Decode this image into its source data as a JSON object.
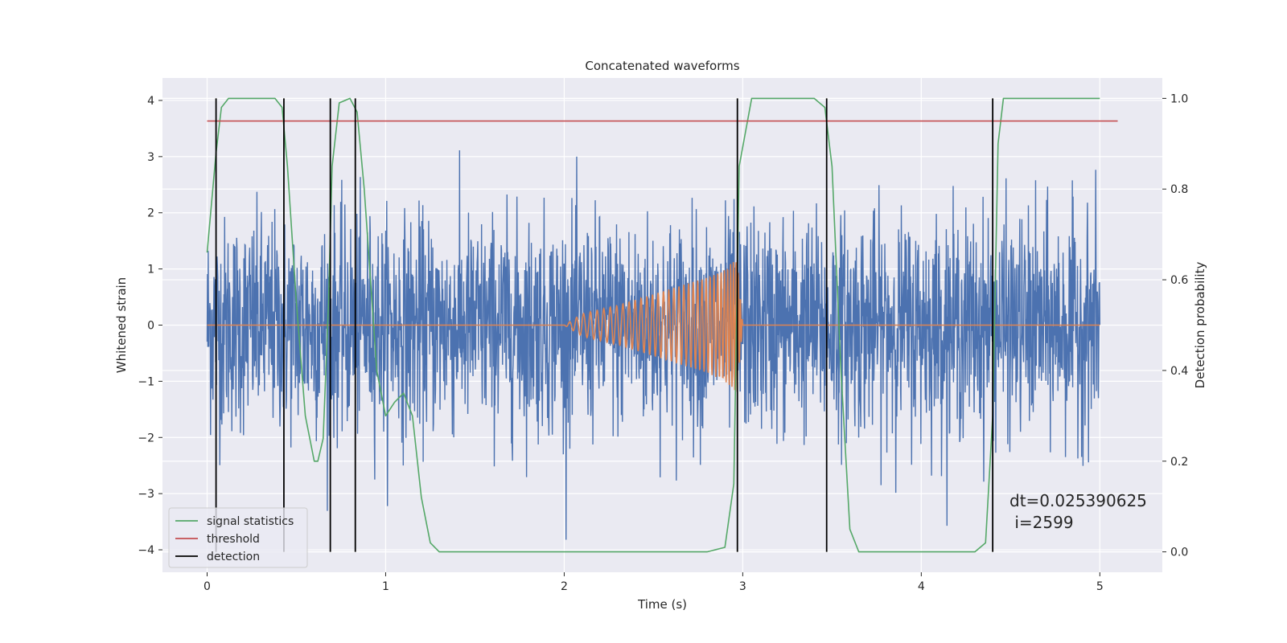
{
  "chart_data": {
    "type": "line",
    "title": "Concatenated waveforms",
    "xlabel": "Time (s)",
    "ylabel_left": "Whitened strain",
    "ylabel_right": "Detection probability",
    "xlim": [
      -0.25,
      5.35
    ],
    "ylim_left": [
      -4.4,
      4.4
    ],
    "ylim_right": [
      -0.045,
      1.045
    ],
    "x_ticks": [
      0,
      1,
      2,
      3,
      4,
      5
    ],
    "y_left_ticks": [
      -4,
      -3,
      -2,
      -1,
      0,
      1,
      2,
      3,
      4
    ],
    "y_right_ticks": [
      0.0,
      0.2,
      0.4,
      0.6,
      0.8,
      1.0
    ],
    "y_left_tick_labels": [
      "−4",
      "−3",
      "−2",
      "−1",
      "0",
      "1",
      "2",
      "3",
      "4"
    ],
    "y_right_tick_labels": [
      "0.0",
      "0.2",
      "0.4",
      "0.6",
      "0.8",
      "1.0"
    ],
    "grid": true,
    "background": "#eaeaf2",
    "legend_position": "lower-left",
    "series": [
      {
        "name": "",
        "axis": "left",
        "kind": "noise",
        "color": "#4c72b0",
        "x_range": [
          0,
          5
        ],
        "amplitude_std": 0.95,
        "amplitude_max": 3.9
      },
      {
        "name": "",
        "axis": "left",
        "kind": "chirp",
        "color": "#dd8452",
        "x": [
          0,
          2.0,
          2.1,
          2.2,
          2.3,
          2.4,
          2.5,
          2.6,
          2.7,
          2.8,
          2.9,
          2.97,
          3.0,
          5.0
        ],
        "envelope": [
          0,
          0.0,
          0.2,
          0.28,
          0.35,
          0.45,
          0.55,
          0.65,
          0.75,
          0.85,
          1.0,
          1.2,
          0.0,
          0.0
        ]
      },
      {
        "name": "signal statistics",
        "axis": "right",
        "color": "#55a868",
        "x": [
          0.0,
          0.05,
          0.08,
          0.12,
          0.2,
          0.38,
          0.42,
          0.45,
          0.5,
          0.55,
          0.6,
          0.62,
          0.65,
          0.68,
          0.7,
          0.74,
          0.8,
          0.84,
          0.88,
          0.95,
          1.0,
          1.05,
          1.1,
          1.15,
          1.2,
          1.25,
          1.3,
          1.5,
          2.0,
          2.5,
          2.8,
          2.9,
          2.95,
          2.98,
          3.05,
          3.4,
          3.46,
          3.5,
          3.55,
          3.6,
          3.65,
          4.0,
          4.3,
          4.36,
          4.4,
          4.43,
          4.46,
          4.6,
          5.0
        ],
        "y": [
          0.66,
          0.88,
          0.98,
          1.0,
          1.0,
          1.0,
          0.98,
          0.85,
          0.55,
          0.3,
          0.2,
          0.2,
          0.25,
          0.55,
          0.85,
          0.99,
          1.0,
          0.97,
          0.8,
          0.4,
          0.3,
          0.33,
          0.35,
          0.3,
          0.12,
          0.02,
          0.0,
          0.0,
          0.0,
          0.0,
          0.0,
          0.01,
          0.15,
          0.85,
          1.0,
          1.0,
          0.98,
          0.85,
          0.4,
          0.05,
          0.0,
          0.0,
          0.0,
          0.02,
          0.3,
          0.9,
          1.0,
          1.0,
          1.0
        ]
      },
      {
        "name": "threshold",
        "axis": "right",
        "color": "#c44e52",
        "x": [
          0,
          5.1
        ],
        "y": [
          0.95,
          0.95
        ]
      },
      {
        "name": "detection",
        "axis": "right",
        "kind": "vlines",
        "color": "#000000",
        "x": [
          0.05,
          0.43,
          0.69,
          0.83,
          2.97,
          3.47,
          4.4
        ],
        "ymin": 0.0,
        "ymax": 1.0
      }
    ],
    "annotation": {
      "line1": "dt=0.025390625",
      "line2": " i=2599"
    }
  }
}
